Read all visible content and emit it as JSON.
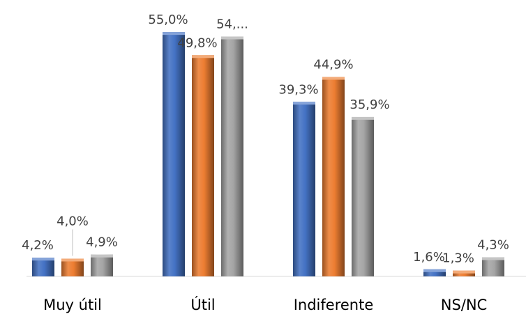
{
  "chart_data": {
    "type": "bar",
    "categories": [
      "Muy útil",
      "Útil",
      "Indiferente",
      "NS/NC"
    ],
    "series": [
      {
        "color": "#4472C4",
        "values": [
          4.2,
          55.0,
          39.3,
          1.6
        ],
        "labels": [
          "4,2%",
          "55,0%",
          "39,3%",
          "1,6%"
        ]
      },
      {
        "color": "#ED7D31",
        "values": [
          4.0,
          49.8,
          44.9,
          1.3
        ],
        "labels": [
          "4,0%",
          "49,8%",
          "44,9%",
          "1,3%"
        ]
      },
      {
        "color": "#A5A5A5",
        "values": [
          4.9,
          54.0,
          35.9,
          4.3
        ],
        "labels": [
          "4,9%",
          "54,...",
          "35,9%",
          "4,3%"
        ]
      }
    ],
    "ylim": [
      0,
      55
    ],
    "grid": false,
    "legend": "none"
  }
}
